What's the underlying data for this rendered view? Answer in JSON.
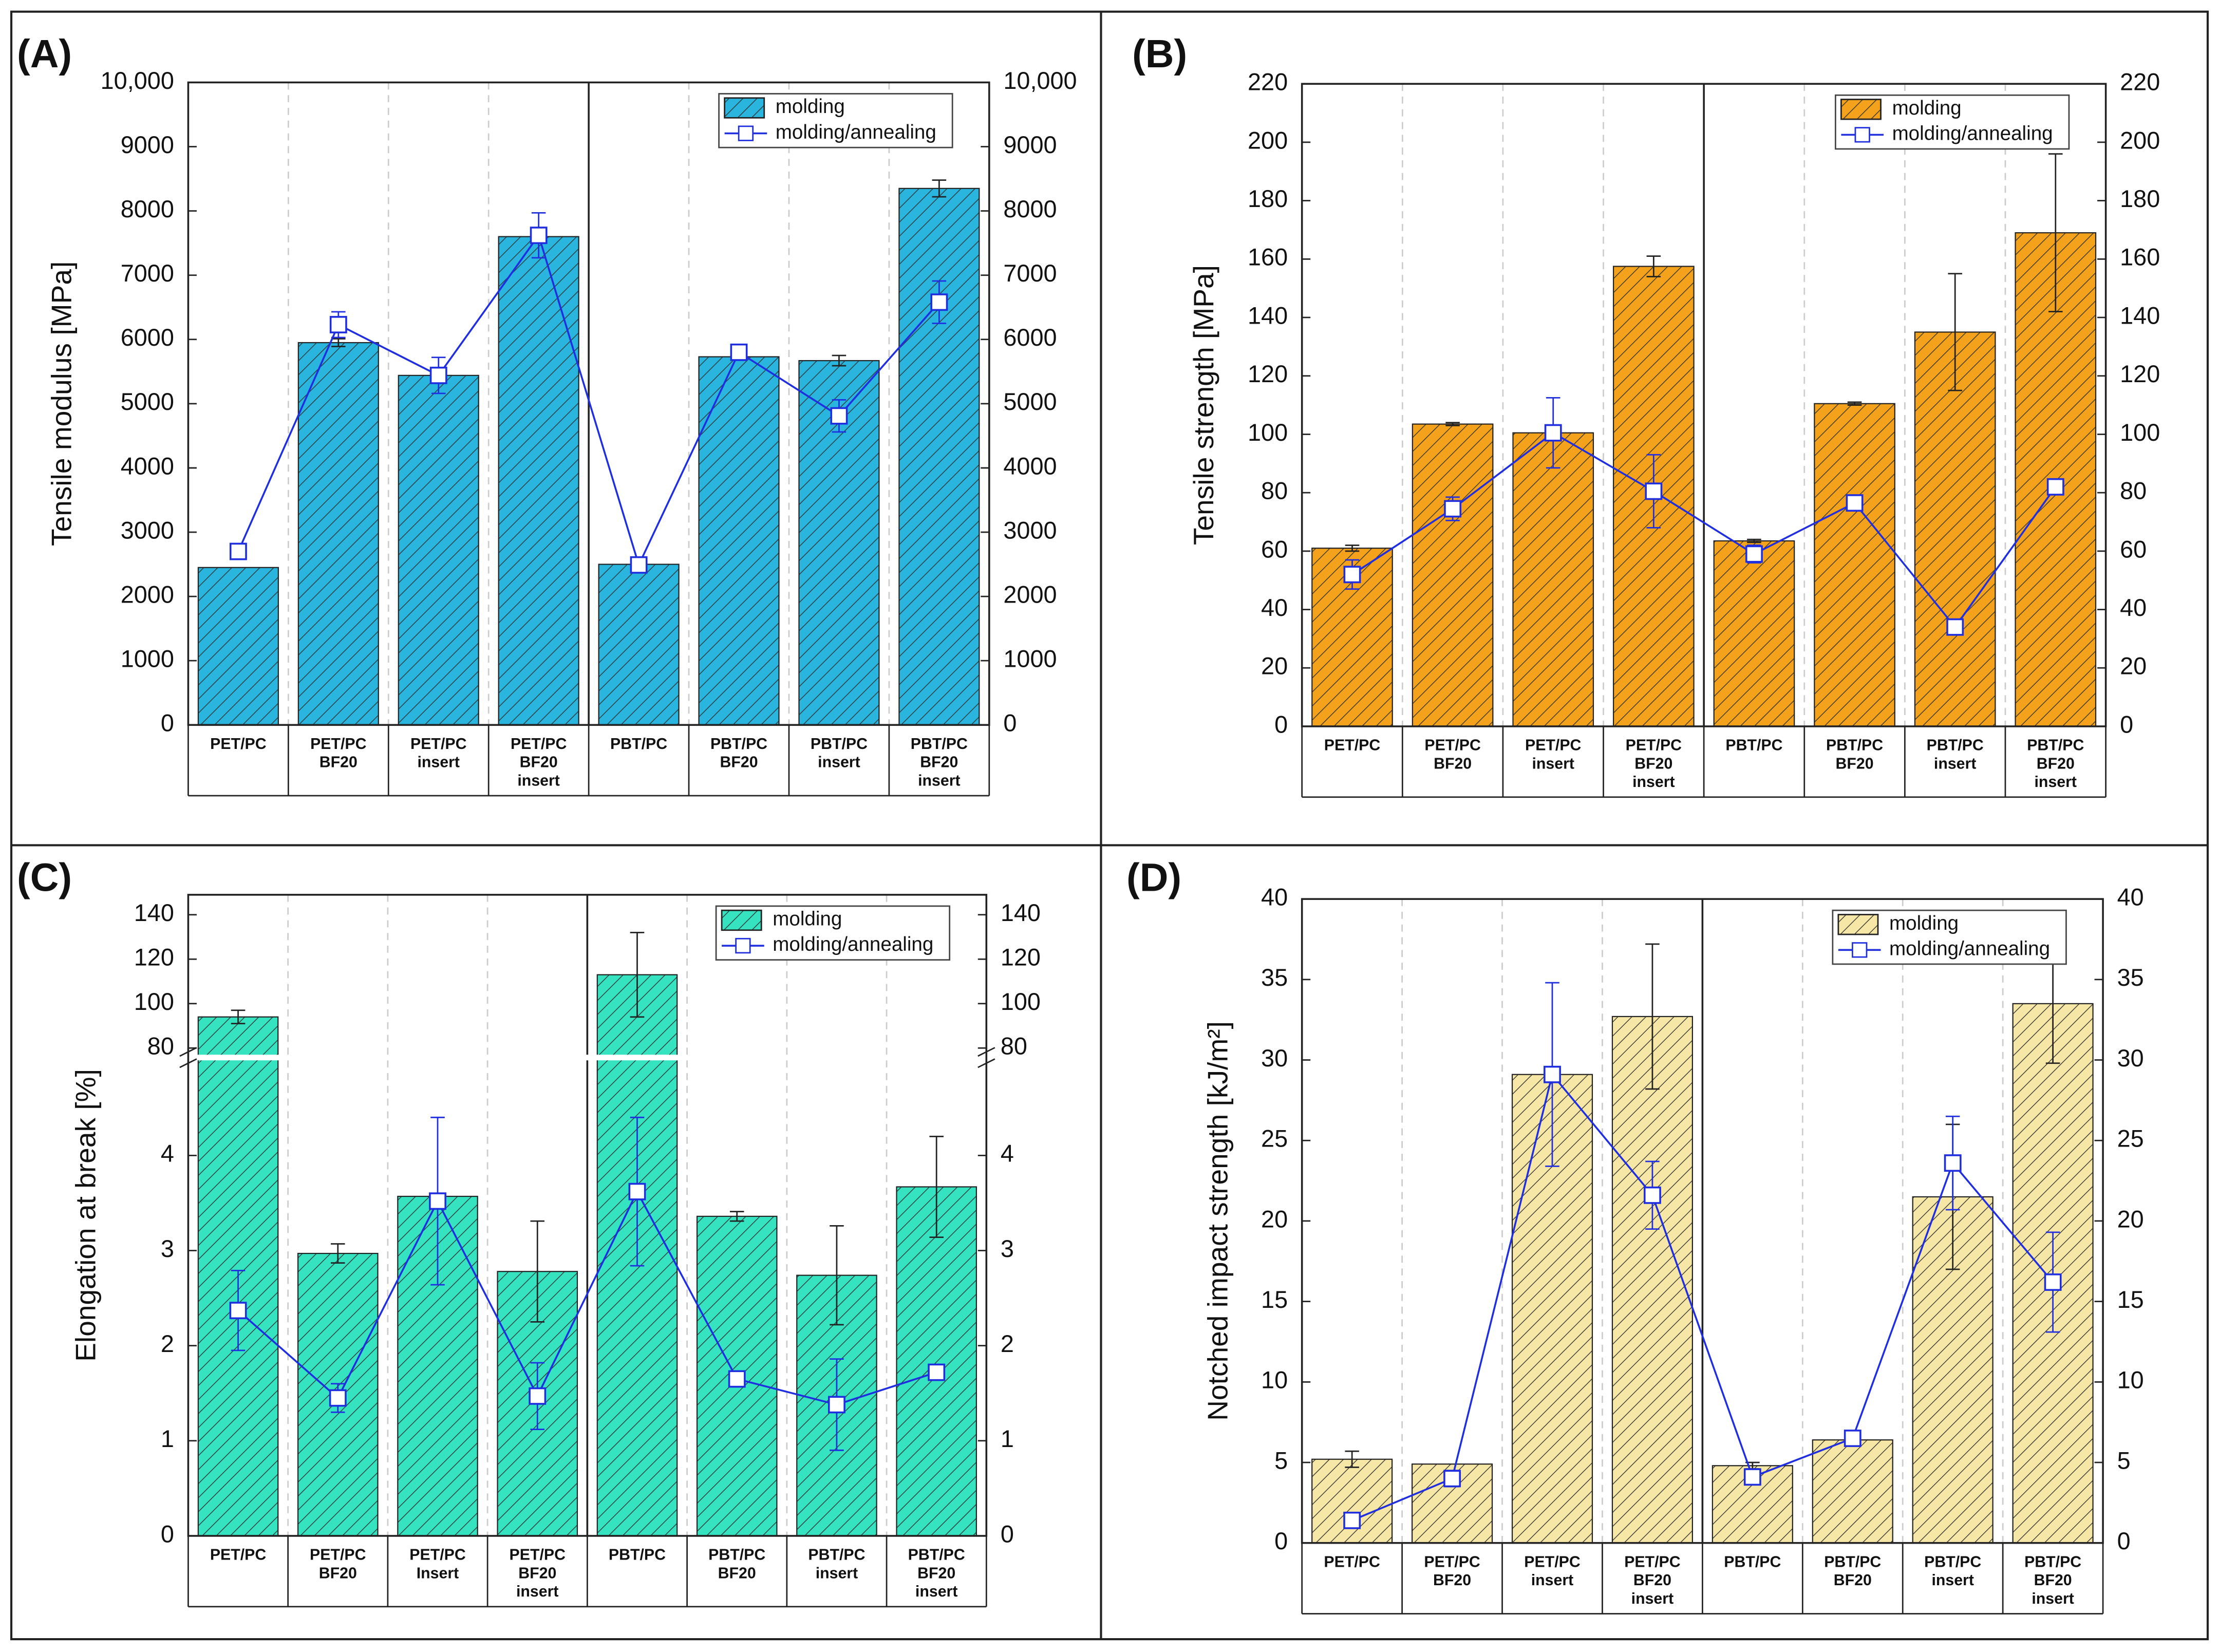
{
  "chart_data": [
    {
      "type": "bar",
      "panel": "(A)",
      "y_label": "Tensile modulus [MPa]",
      "categories": [
        "PET/PC",
        "PET/PC\nBF20",
        "PET/PC\ninsert",
        "PET/PC\nBF20\ninsert",
        "PBT/PC",
        "PBT/PC\nBF20",
        "PBT/PC\ninsert",
        "PBT/PC\nBF20\ninsert"
      ],
      "series": [
        {
          "name": "molding",
          "type": "bar",
          "color": "#29b5dd",
          "values": [
            2450,
            5950,
            5440,
            7600,
            2500,
            5730,
            5670,
            8350
          ],
          "errors": [
            0,
            60,
            0,
            100,
            0,
            0,
            80,
            130
          ]
        },
        {
          "name": "molding/annealing",
          "type": "line",
          "color": "#1f2fe0",
          "values": [
            2700,
            6230,
            5440,
            7620,
            2490,
            5800,
            4810,
            6580
          ],
          "errors": [
            100,
            200,
            280,
            350,
            60,
            80,
            250,
            330
          ]
        }
      ],
      "ylim": [
        0,
        10000
      ],
      "yticks": [
        0,
        1000,
        2000,
        3000,
        4000,
        5000,
        6000,
        7000,
        8000,
        9000,
        {
          "value": 10000,
          "label": "10,000"
        }
      ],
      "legend": "upper right"
    },
    {
      "type": "bar",
      "panel": "(B)",
      "y_label": "Tensile strength [MPa]",
      "categories": [
        "PET/PC",
        "PET/PC\nBF20",
        "PET/PC\ninsert",
        "PET/PC\nBF20\ninsert",
        "PBT/PC",
        "PBT/PC\nBF20",
        "PBT/PC\ninsert",
        "PBT/PC\nBF20\ninsert"
      ],
      "series": [
        {
          "name": "molding",
          "type": "bar",
          "color": "#f4a21b",
          "values": [
            61,
            103.5,
            100.5,
            157.5,
            63.5,
            110.5,
            135,
            169
          ],
          "errors": [
            1,
            0.5,
            0,
            3.5,
            0.5,
            0.5,
            20,
            27
          ]
        },
        {
          "name": "molding/annealing",
          "type": "line",
          "color": "#1f2fe0",
          "values": [
            52,
            74.5,
            100.5,
            80.5,
            59,
            76.5,
            34,
            82
          ],
          "errors": [
            5,
            4,
            12,
            12.5,
            3,
            2.5,
            1,
            2
          ]
        }
      ],
      "ylim": [
        0,
        220
      ],
      "yticks": [
        0,
        20,
        40,
        60,
        80,
        100,
        120,
        140,
        160,
        180,
        200,
        220
      ],
      "legend": "upper right"
    },
    {
      "type": "bar",
      "panel": "(C)",
      "y_label": "Elongation at break [%]",
      "categories": [
        "PET/PC",
        "PET/PC\nBF20",
        "PET/PC\nInsert",
        "PET/PC\nBF20\ninsert",
        "PBT/PC",
        "PBT/PC\nBF20",
        "PBT/PC\ninsert",
        "PBT/PC\nBF20\ninsert"
      ],
      "series": [
        {
          "name": "molding",
          "type": "bar",
          "color": "#36e3c0",
          "values": [
            94,
            2.97,
            3.57,
            2.78,
            113,
            3.36,
            2.74,
            3.67
          ],
          "errors": [
            3,
            0.1,
            0,
            0.53,
            19,
            0.05,
            0.52,
            0.53
          ]
        },
        {
          "name": "molding/annealing",
          "type": "line",
          "color": "#1f2fe0",
          "values": [
            2.37,
            1.45,
            3.52,
            1.47,
            3.62,
            1.65,
            1.38,
            1.72
          ],
          "errors": [
            0.42,
            0.15,
            0.88,
            0.35,
            0.78,
            0.05,
            0.48,
            0.05
          ]
        }
      ],
      "ylim": [
        0,
        149
      ],
      "ybreak": [
        5,
        77
      ],
      "yticks": [
        0,
        1,
        2,
        3,
        4,
        80,
        100,
        120,
        140
      ],
      "legend": "upper right"
    },
    {
      "type": "bar",
      "panel": "(D)",
      "y_label": "Notched impact strength [kJ/m²]",
      "categories": [
        "PET/PC",
        "PET/PC\nBF20",
        "PET/PC\ninsert",
        "PET/PC\nBF20\ninsert",
        "PBT/PC",
        "PBT/PC\nBF20",
        "PBT/PC\ninsert",
        "PBT/PC\nBF20\ninsert"
      ],
      "series": [
        {
          "name": "molding",
          "type": "bar",
          "color": "#f6e7a6",
          "values": [
            5.2,
            4.9,
            29.1,
            32.7,
            4.8,
            6.4,
            21.5,
            33.5
          ],
          "errors": [
            0.5,
            0,
            0,
            4.5,
            0.2,
            0,
            4.5,
            3.7
          ]
        },
        {
          "name": "molding/annealing",
          "type": "line",
          "color": "#1f2fe0",
          "values": [
            1.4,
            4.0,
            29.1,
            21.6,
            4.1,
            6.5,
            23.6,
            16.2
          ],
          "errors": [
            0.3,
            0.5,
            5.7,
            2.1,
            0.4,
            0.2,
            2.9,
            3.1
          ]
        }
      ],
      "ylim": [
        0,
        40
      ],
      "yticks": [
        0,
        5,
        10,
        15,
        20,
        25,
        30,
        35,
        40
      ],
      "legend": "upper right"
    }
  ]
}
